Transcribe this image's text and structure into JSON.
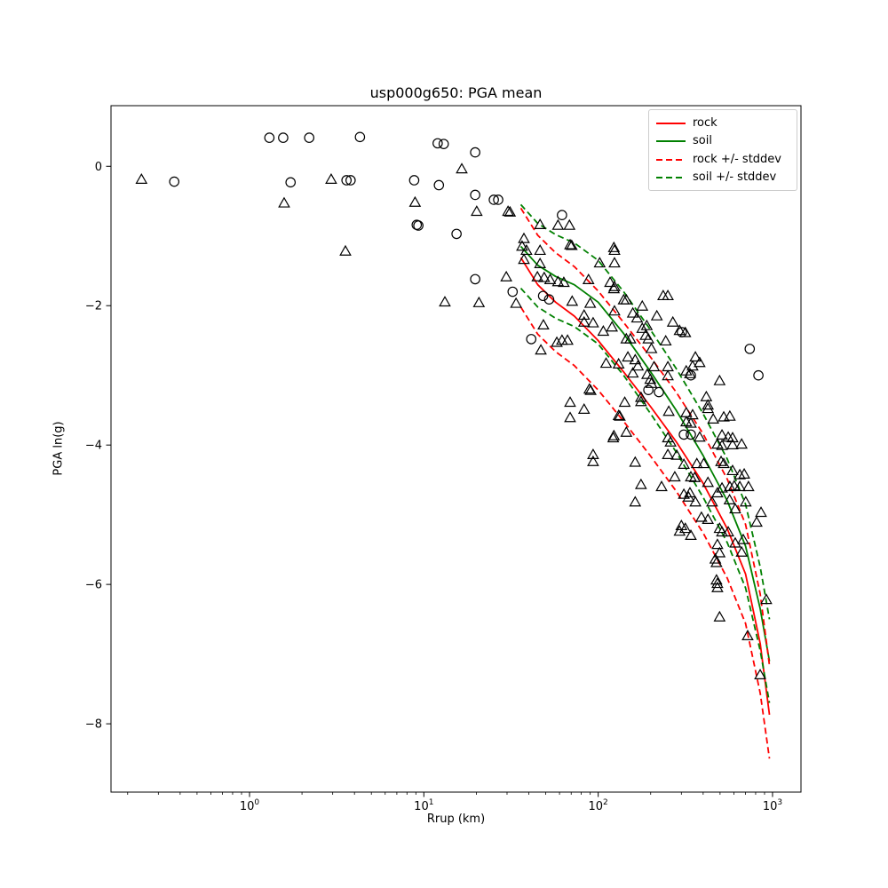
{
  "chart_data": {
    "type": "scatter",
    "title": "usp000g650: PGA mean",
    "xlabel": "Rrup (km)",
    "ylabel": "PGA ln(g)",
    "x_scale": "log",
    "xlim": [
      0.1605,
      1456
    ],
    "ylim": [
      -8.98,
      0.87
    ],
    "grid": false,
    "xticks": [
      {
        "value": 1,
        "base": "10",
        "exp": "0"
      },
      {
        "value": 10,
        "base": "10",
        "exp": "1"
      },
      {
        "value": 100,
        "base": "10",
        "exp": "2"
      },
      {
        "value": 1000,
        "base": "10",
        "exp": "3"
      }
    ],
    "yticks": [
      {
        "value": 0,
        "label": "0"
      },
      {
        "value": -2,
        "label": "−2"
      },
      {
        "value": -4,
        "label": "−4"
      },
      {
        "value": -6,
        "label": "−6"
      },
      {
        "value": -8,
        "label": "−8"
      }
    ],
    "legend": {
      "position": "upper right",
      "items": [
        {
          "label": "rock",
          "color": "#ff0000",
          "style": "solid"
        },
        {
          "label": "soil",
          "color": "#008000",
          "style": "solid"
        },
        {
          "label": "rock +/- stddev",
          "color": "#ff0000",
          "style": "dashed"
        },
        {
          "label": "soil +/- stddev",
          "color": "#008000",
          "style": "dashed"
        }
      ]
    },
    "series": [
      {
        "name": "rock-mean",
        "color": "#ff0000",
        "style": "solid",
        "x": [
          36,
          45,
          57,
          73,
          100,
          140,
          200,
          280,
          400,
          550,
          700,
          850,
          960
        ],
        "y": [
          -1.31,
          -1.7,
          -1.95,
          -2.15,
          -2.5,
          -2.95,
          -3.45,
          -3.95,
          -4.55,
          -5.2,
          -5.85,
          -6.85,
          -7.87
        ]
      },
      {
        "name": "soil-mean",
        "color": "#008000",
        "style": "solid",
        "x": [
          36,
          45,
          57,
          73,
          100,
          140,
          200,
          280,
          400,
          550,
          700,
          850,
          960
        ],
        "y": [
          -1.15,
          -1.42,
          -1.58,
          -1.7,
          -1.95,
          -2.4,
          -2.95,
          -3.5,
          -4.15,
          -4.8,
          -5.45,
          -6.35,
          -7.1
        ]
      },
      {
        "name": "rock-plus-stddev",
        "color": "#ff0000",
        "style": "dashed",
        "x": [
          36,
          45,
          57,
          73,
          100,
          140,
          200,
          280,
          400,
          550,
          700,
          850,
          960
        ],
        "y": [
          -0.6,
          -0.99,
          -1.24,
          -1.44,
          -1.79,
          -2.24,
          -2.74,
          -3.24,
          -3.84,
          -4.49,
          -5.14,
          -6.14,
          -7.16
        ]
      },
      {
        "name": "rock-minus-stddev",
        "color": "#ff0000",
        "style": "dashed",
        "x": [
          36,
          45,
          57,
          73,
          100,
          140,
          200,
          280,
          400,
          550,
          700,
          850,
          960
        ],
        "y": [
          -2.02,
          -2.41,
          -2.66,
          -2.86,
          -3.21,
          -3.66,
          -4.16,
          -4.66,
          -5.26,
          -5.91,
          -6.56,
          -7.56,
          -8.5
        ]
      },
      {
        "name": "soil-plus-stddev",
        "color": "#008000",
        "style": "dashed",
        "x": [
          36,
          45,
          57,
          73,
          100,
          140,
          200,
          280,
          400,
          550,
          700,
          850,
          960
        ],
        "y": [
          -0.55,
          -0.82,
          -0.98,
          -1.1,
          -1.35,
          -1.8,
          -2.35,
          -2.9,
          -3.55,
          -4.2,
          -4.85,
          -5.75,
          -6.5
        ]
      },
      {
        "name": "soil-minus-stddev",
        "color": "#008000",
        "style": "dashed",
        "x": [
          36,
          45,
          57,
          73,
          100,
          140,
          200,
          280,
          400,
          550,
          700,
          850,
          960
        ],
        "y": [
          -1.75,
          -2.02,
          -2.18,
          -2.3,
          -2.55,
          -3.0,
          -3.55,
          -4.1,
          -4.75,
          -5.4,
          -6.05,
          -6.95,
          -7.7
        ]
      }
    ],
    "scatter_groups": [
      {
        "name": "circle-stations",
        "marker": "circle",
        "color": "#000000",
        "points": [
          [
            0.37,
            -0.22
          ],
          [
            1.3,
            0.41
          ],
          [
            1.56,
            0.41
          ],
          [
            2.2,
            0.41
          ],
          [
            4.3,
            0.42
          ],
          [
            12.0,
            0.33
          ],
          [
            13.0,
            0.32
          ],
          [
            1.72,
            -0.23
          ],
          [
            3.6,
            -0.2
          ],
          [
            3.8,
            -0.2
          ],
          [
            8.8,
            -0.2
          ],
          [
            12.2,
            -0.27
          ],
          [
            19.7,
            0.2
          ],
          [
            19.7,
            -0.41
          ],
          [
            25.2,
            -0.48
          ],
          [
            26.7,
            -0.48
          ],
          [
            9.1,
            -0.84
          ],
          [
            9.3,
            -0.85
          ],
          [
            15.4,
            -0.97
          ],
          [
            19.7,
            -1.62
          ],
          [
            32.3,
            -1.8
          ],
          [
            48.3,
            -1.86
          ],
          [
            52.3,
            -1.91
          ],
          [
            41.3,
            -2.48
          ],
          [
            62.0,
            -0.7
          ],
          [
            302,
            -2.38
          ],
          [
            340,
            -3.0
          ],
          [
            740,
            -2.62
          ],
          [
            830,
            -3.0
          ],
          [
            310,
            -3.85
          ],
          [
            340,
            -3.85
          ],
          [
            194,
            -3.21
          ],
          [
            223,
            -3.24
          ]
        ]
      },
      {
        "name": "triangle-stations",
        "marker": "triangle",
        "color": "#000000",
        "points": [
          [
            0.24,
            -0.19
          ],
          [
            2.94,
            -0.19
          ],
          [
            1.58,
            -0.53
          ],
          [
            8.9,
            -0.52
          ],
          [
            3.55,
            -1.22
          ],
          [
            16.5,
            -0.04
          ],
          [
            20.1,
            -0.65
          ],
          [
            30.4,
            -0.65
          ],
          [
            31.2,
            -0.66
          ],
          [
            13.2,
            -1.95
          ],
          [
            20.7,
            -1.96
          ],
          [
            33.8,
            -1.97
          ],
          [
            46.4,
            -0.84
          ],
          [
            58.8,
            -0.85
          ],
          [
            68.4,
            -0.85
          ],
          [
            37.5,
            -1.04
          ],
          [
            36.6,
            -1.15
          ],
          [
            38.8,
            -1.21
          ],
          [
            69,
            -1.13
          ],
          [
            70.5,
            -1.14
          ],
          [
            46.4,
            -1.21
          ],
          [
            124,
            -1.21
          ],
          [
            37.5,
            -1.34
          ],
          [
            46.4,
            -1.4
          ],
          [
            102,
            -1.39
          ],
          [
            124,
            -1.39
          ],
          [
            29.7,
            -1.59
          ],
          [
            44.8,
            -1.59
          ],
          [
            49,
            -1.6
          ],
          [
            53,
            -1.63
          ],
          [
            58.8,
            -1.66
          ],
          [
            63.5,
            -1.67
          ],
          [
            88,
            -1.63
          ],
          [
            117,
            -1.67
          ],
          [
            124,
            -1.73
          ],
          [
            70.9,
            -1.94
          ],
          [
            90,
            -1.97
          ],
          [
            83,
            -2.14
          ],
          [
            124,
            -2.08
          ],
          [
            48.5,
            -2.28
          ],
          [
            83,
            -2.24
          ],
          [
            93.5,
            -2.25
          ],
          [
            107,
            -2.37
          ],
          [
            120,
            -2.31
          ],
          [
            57.9,
            -2.53
          ],
          [
            62,
            -2.5
          ],
          [
            66.7,
            -2.5
          ],
          [
            46.9,
            -2.64
          ],
          [
            111,
            -2.83
          ],
          [
            131,
            -2.84
          ],
          [
            89,
            -3.2
          ],
          [
            90.5,
            -3.22
          ],
          [
            69,
            -3.39
          ],
          [
            83,
            -3.49
          ],
          [
            69,
            -3.61
          ],
          [
            131,
            -3.58
          ],
          [
            122,
            -3.9
          ],
          [
            93.5,
            -4.14
          ],
          [
            93.5,
            -4.24
          ],
          [
            123,
            -1.17
          ],
          [
            123,
            -1.76
          ],
          [
            140,
            -1.92
          ],
          [
            145,
            -1.92
          ],
          [
            236,
            -1.86
          ],
          [
            251,
            -1.86
          ],
          [
            179,
            -2.01
          ],
          [
            158,
            -2.11
          ],
          [
            167,
            -2.18
          ],
          [
            217,
            -2.15
          ],
          [
            179,
            -2.33
          ],
          [
            190,
            -2.29
          ],
          [
            268,
            -2.24
          ],
          [
            293,
            -2.36
          ],
          [
            316,
            -2.39
          ],
          [
            145,
            -2.48
          ],
          [
            153,
            -2.48
          ],
          [
            187,
            -2.43
          ],
          [
            194,
            -2.48
          ],
          [
            244,
            -2.51
          ],
          [
            202,
            -2.62
          ],
          [
            148,
            -2.74
          ],
          [
            163,
            -2.78
          ],
          [
            169,
            -2.87
          ],
          [
            158,
            -2.97
          ],
          [
            209,
            -2.88
          ],
          [
            251,
            -2.88
          ],
          [
            361,
            -2.74
          ],
          [
            382,
            -2.82
          ],
          [
            348,
            -2.87
          ],
          [
            320,
            -2.94
          ],
          [
            336,
            -2.98
          ],
          [
            251,
            -3.01
          ],
          [
            497,
            -3.08
          ],
          [
            191,
            -2.99
          ],
          [
            199,
            -3.06
          ],
          [
            202,
            -3.12
          ],
          [
            176,
            -3.32
          ],
          [
            142,
            -3.39
          ],
          [
            176,
            -3.38
          ],
          [
            133,
            -3.59
          ],
          [
            145,
            -3.82
          ],
          [
            123,
            -3.87
          ],
          [
            254,
            -3.52
          ],
          [
            320,
            -3.54
          ],
          [
            348,
            -3.57
          ],
          [
            417,
            -3.31
          ],
          [
            426,
            -3.43
          ],
          [
            426,
            -3.48
          ],
          [
            457,
            -3.63
          ],
          [
            525,
            -3.6
          ],
          [
            569,
            -3.59
          ],
          [
            320,
            -3.67
          ],
          [
            340,
            -3.69
          ],
          [
            382,
            -3.89
          ],
          [
            251,
            -3.9
          ],
          [
            260,
            -3.96
          ],
          [
            513,
            -3.86
          ],
          [
            557,
            -3.89
          ],
          [
            590,
            -3.9
          ],
          [
            483,
            -3.99
          ],
          [
            513,
            -4.01
          ],
          [
            590,
            -4.0
          ],
          [
            665,
            -3.99
          ],
          [
            251,
            -4.14
          ],
          [
            282,
            -4.15
          ],
          [
            310,
            -4.28
          ],
          [
            368,
            -4.27
          ],
          [
            403,
            -4.27
          ],
          [
            163,
            -4.25
          ],
          [
            507,
            -4.24
          ],
          [
            525,
            -4.27
          ],
          [
            590,
            -4.37
          ],
          [
            649,
            -4.43
          ],
          [
            688,
            -4.42
          ],
          [
            275,
            -4.46
          ],
          [
            340,
            -4.46
          ],
          [
            358,
            -4.47
          ],
          [
            176,
            -4.57
          ],
          [
            231,
            -4.6
          ],
          [
            310,
            -4.71
          ],
          [
            336,
            -4.69
          ],
          [
            330,
            -4.75
          ],
          [
            426,
            -4.54
          ],
          [
            483,
            -4.69
          ],
          [
            513,
            -4.62
          ],
          [
            569,
            -4.6
          ],
          [
            603,
            -4.59
          ],
          [
            649,
            -4.6
          ],
          [
            728,
            -4.6
          ],
          [
            163,
            -4.82
          ],
          [
            361,
            -4.82
          ],
          [
            450,
            -4.82
          ],
          [
            567,
            -4.79
          ],
          [
            702,
            -4.82
          ],
          [
            611,
            -4.92
          ],
          [
            859,
            -4.97
          ],
          [
            811,
            -5.11
          ],
          [
            391,
            -5.04
          ],
          [
            426,
            -5.07
          ],
          [
            300,
            -5.16
          ],
          [
            316,
            -5.2
          ],
          [
            293,
            -5.24
          ],
          [
            497,
            -5.2
          ],
          [
            513,
            -5.25
          ],
          [
            557,
            -5.25
          ],
          [
            340,
            -5.3
          ],
          [
            483,
            -5.43
          ],
          [
            611,
            -5.41
          ],
          [
            679,
            -5.36
          ],
          [
            497,
            -5.55
          ],
          [
            665,
            -5.54
          ],
          [
            470,
            -5.64
          ],
          [
            477,
            -5.69
          ],
          [
            477,
            -5.94
          ],
          [
            483,
            -5.99
          ],
          [
            483,
            -6.05
          ],
          [
            921,
            -6.22
          ],
          [
            497,
            -6.47
          ],
          [
            720,
            -6.74
          ],
          [
            849,
            -7.3
          ]
        ]
      }
    ]
  }
}
